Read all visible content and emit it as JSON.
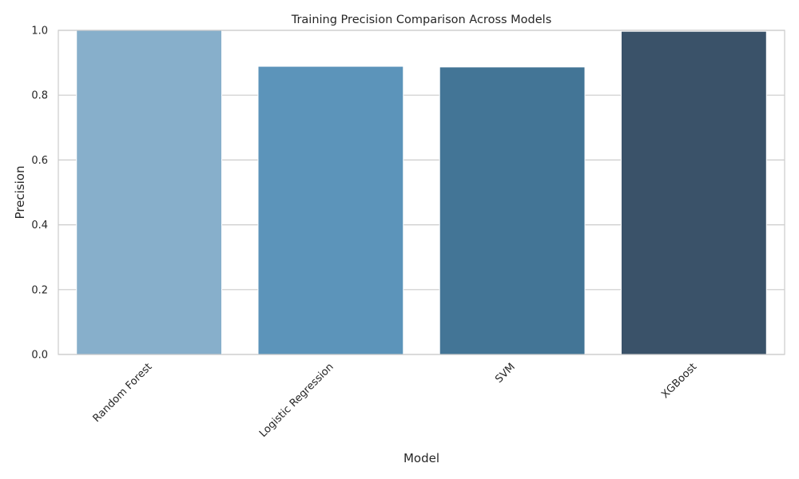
{
  "chart_data": {
    "type": "bar",
    "title": "Training Precision Comparison Across Models",
    "xlabel": "Model",
    "ylabel": "Precision",
    "categories": [
      "Random Forest",
      "Logistic Regression",
      "SVM",
      "XGBoost"
    ],
    "values": [
      1.0,
      0.889,
      0.887,
      0.997
    ],
    "ylim": [
      0,
      1.0
    ],
    "yticks": [
      "0.0",
      "0.2",
      "0.4",
      "0.6",
      "0.8",
      "1.0"
    ],
    "grid": true,
    "bar_colors": [
      "#87AFCB",
      "#5C94BA",
      "#437596",
      "#3A5269"
    ],
    "grid_color": "#CCCCCC",
    "frame_color": "#CCCCCC"
  }
}
